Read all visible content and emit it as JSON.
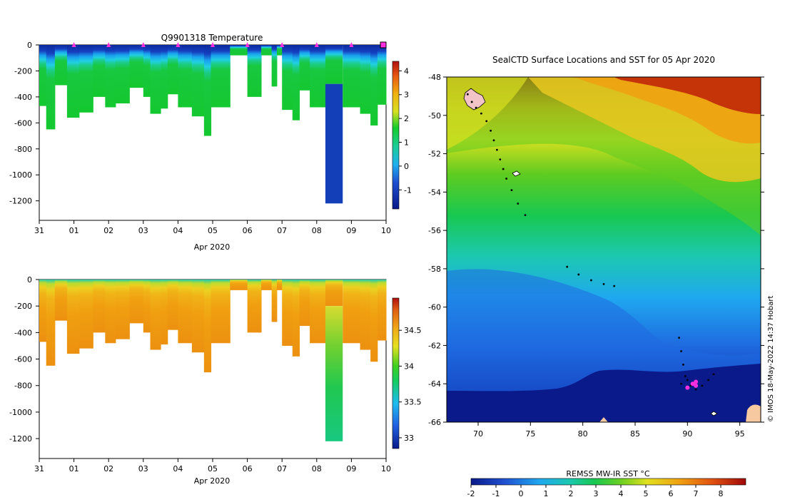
{
  "chart_data": [
    {
      "type": "heatmap",
      "panel": "temperature-section",
      "title": "Q9901318  Temperature",
      "xlabel": "Apr 2020",
      "x_tick_labels": [
        "31",
        "01",
        "02",
        "03",
        "04",
        "05",
        "06",
        "07",
        "08",
        "09",
        "10"
      ],
      "y_ticks": [
        0,
        -200,
        -400,
        -600,
        -800,
        -1000,
        -1200
      ],
      "ylim": [
        -1350,
        0
      ],
      "colorbar_ticks": [
        4,
        3,
        2,
        1,
        0,
        -1
      ],
      "colorbar_range": [
        -1.8,
        4.4
      ],
      "profile_marker_days": [
        1,
        2,
        3,
        4,
        5,
        6,
        7,
        8,
        9
      ],
      "profiles": [
        {
          "day_start": 0.0,
          "day_end": 0.2,
          "bottom": -470
        },
        {
          "day_start": 0.2,
          "day_end": 0.45,
          "bottom": -650
        },
        {
          "day_start": 0.45,
          "day_end": 0.8,
          "bottom": -310
        },
        {
          "day_start": 0.8,
          "day_end": 1.15,
          "bottom": -560
        },
        {
          "day_start": 1.15,
          "day_end": 1.55,
          "bottom": -520
        },
        {
          "day_start": 1.55,
          "day_end": 1.9,
          "bottom": -400
        },
        {
          "day_start": 1.9,
          "day_end": 2.2,
          "bottom": -480
        },
        {
          "day_start": 2.2,
          "day_end": 2.6,
          "bottom": -450
        },
        {
          "day_start": 2.6,
          "day_end": 3.0,
          "bottom": -330
        },
        {
          "day_start": 3.0,
          "day_end": 3.2,
          "bottom": -400
        },
        {
          "day_start": 3.2,
          "day_end": 3.5,
          "bottom": -530
        },
        {
          "day_start": 3.5,
          "day_end": 3.7,
          "bottom": -490
        },
        {
          "day_start": 3.7,
          "day_end": 4.0,
          "bottom": -380
        },
        {
          "day_start": 4.0,
          "day_end": 4.4,
          "bottom": -480
        },
        {
          "day_start": 4.4,
          "day_end": 4.75,
          "bottom": -550
        },
        {
          "day_start": 4.75,
          "day_end": 4.95,
          "bottom": -700
        },
        {
          "day_start": 4.95,
          "day_end": 5.5,
          "bottom": -480
        },
        {
          "day_start": 5.5,
          "day_end": 6.0,
          "bottom": -80
        },
        {
          "day_start": 6.0,
          "day_end": 6.4,
          "bottom": -400
        },
        {
          "day_start": 6.4,
          "day_end": 6.7,
          "bottom": -80
        },
        {
          "day_start": 6.7,
          "day_end": 6.85,
          "bottom": -320
        },
        {
          "day_start": 6.85,
          "day_end": 7.0,
          "bottom": -80
        },
        {
          "day_start": 7.0,
          "day_end": 7.3,
          "bottom": -500
        },
        {
          "day_start": 7.3,
          "day_end": 7.5,
          "bottom": -580
        },
        {
          "day_start": 7.5,
          "day_end": 7.8,
          "bottom": -350
        },
        {
          "day_start": 7.8,
          "day_end": 8.25,
          "bottom": -480
        },
        {
          "day_start": 8.25,
          "day_end": 8.75,
          "bottom": -1220
        },
        {
          "day_start": 8.75,
          "day_end": 9.25,
          "bottom": -480
        },
        {
          "day_start": 9.25,
          "day_end": 9.55,
          "bottom": -530
        },
        {
          "day_start": 9.55,
          "day_end": 9.75,
          "bottom": -620
        },
        {
          "day_start": 9.75,
          "day_end": 10.0,
          "bottom": -460
        }
      ]
    },
    {
      "type": "heatmap",
      "panel": "salinity-section",
      "title": "",
      "xlabel": "Apr 2020",
      "x_tick_labels": [
        "31",
        "01",
        "02",
        "03",
        "04",
        "05",
        "06",
        "07",
        "08",
        "09",
        "10"
      ],
      "y_ticks": [
        0,
        -200,
        -400,
        -600,
        -800,
        -1000,
        -1200
      ],
      "ylim": [
        -1350,
        0
      ],
      "colorbar_ticks": [
        34.5,
        34,
        33.5,
        33
      ],
      "colorbar_range": [
        32.85,
        34.95
      ]
    },
    {
      "type": "heatmap",
      "panel": "sst-map",
      "title": "SealCTD Surface Locations and SST for 05 Apr 2020",
      "x_ticks": [
        70,
        75,
        80,
        85,
        90,
        95
      ],
      "y_ticks": [
        -48,
        -50,
        -52,
        -54,
        -56,
        -58,
        -60,
        -62,
        -64,
        -66
      ],
      "xlim": [
        67,
        97
      ],
      "ylim": [
        -66,
        -48
      ],
      "colorbar_label": "REMSS MW-IR SST °C",
      "colorbar_ticks": [
        -2,
        -1,
        0,
        1,
        2,
        3,
        4,
        5,
        6,
        7,
        8
      ],
      "colorbar_range": [
        -2,
        9
      ],
      "track": [
        [
          69.0,
          -48.9
        ],
        [
          69.4,
          -49.3
        ],
        [
          69.8,
          -49.6
        ],
        [
          70.3,
          -49.9
        ],
        [
          70.8,
          -50.3
        ],
        [
          71.2,
          -50.8
        ],
        [
          71.5,
          -51.3
        ],
        [
          71.8,
          -51.8
        ],
        [
          72.1,
          -52.3
        ],
        [
          72.4,
          -52.8
        ],
        [
          72.7,
          -53.3
        ],
        [
          73.2,
          -53.9
        ],
        [
          73.8,
          -54.6
        ],
        [
          74.5,
          -55.2
        ],
        [
          78.5,
          -57.9
        ],
        [
          79.6,
          -58.3
        ],
        [
          80.8,
          -58.6
        ],
        [
          82.0,
          -58.8
        ],
        [
          83.0,
          -58.9
        ],
        [
          89.2,
          -61.6
        ],
        [
          89.4,
          -62.3
        ],
        [
          89.6,
          -63.0
        ],
        [
          89.8,
          -63.6
        ],
        [
          90.3,
          -64.1
        ],
        [
          90.8,
          -64.3
        ],
        [
          91.4,
          -64.1
        ],
        [
          92.0,
          -63.8
        ],
        [
          92.5,
          -63.5
        ],
        [
          89.4,
          -64.0
        ],
        [
          90.0,
          -63.8
        ]
      ],
      "surface_locations": [
        [
          90.0,
          -64.2
        ],
        [
          90.5,
          -64.0
        ],
        [
          90.8,
          -64.1
        ],
        [
          90.8,
          -63.9
        ]
      ]
    }
  ],
  "credit": "© IMOS 18-May-2022 14:37 Hobart",
  "colors": {
    "land": "#f7c9a0",
    "marker": "#ff2fe0"
  }
}
